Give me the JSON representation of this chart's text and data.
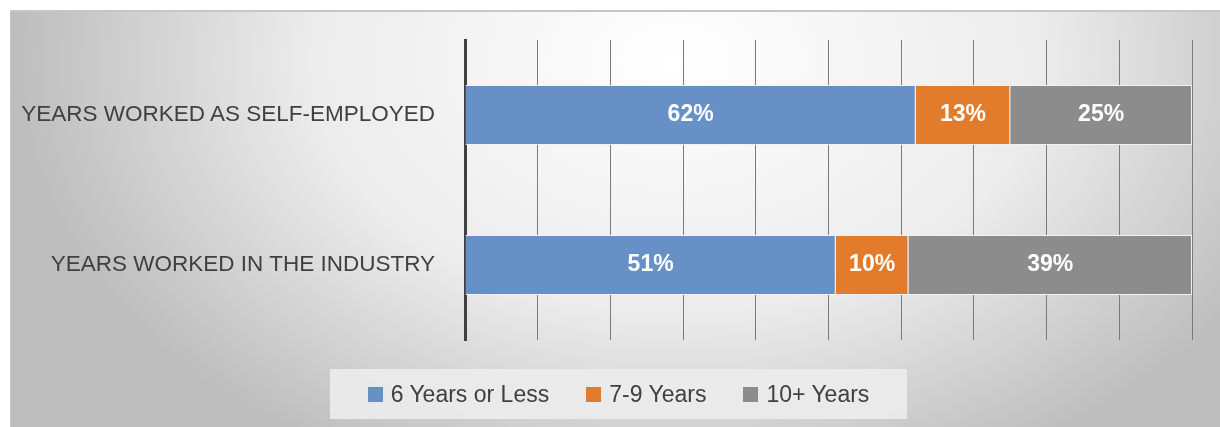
{
  "chart_data": {
    "type": "bar",
    "orientation": "horizontal",
    "stacked": true,
    "categories": [
      "YEARS WORKED AS SELF-EMPLOYED",
      "YEARS WORKED IN THE INDUSTRY"
    ],
    "series": [
      {
        "name": "6 Years or Less",
        "color": "#6791c6",
        "values": [
          62,
          51
        ],
        "value_labels": [
          "62%",
          "51%"
        ]
      },
      {
        "name": "7-9 Years",
        "color": "#e27c2c",
        "values": [
          13,
          10
        ],
        "value_labels": [
          "13%",
          "10%"
        ]
      },
      {
        "name": "10+ Years",
        "color": "#8c8c8c",
        "values": [
          25,
          39
        ],
        "value_labels": [
          "25%",
          "39%"
        ]
      }
    ],
    "xlim": [
      0,
      100
    ],
    "xticks": [
      {
        "value": 0,
        "label": null
      },
      {
        "value": 10,
        "label": null
      },
      {
        "value": 20,
        "label": null
      },
      {
        "value": 30,
        "label": null
      },
      {
        "value": 40,
        "label": null
      },
      {
        "value": 50,
        "label": null
      },
      {
        "value": 60,
        "label": null
      },
      {
        "value": 70,
        "label": null
      },
      {
        "value": 80,
        "label": null
      },
      {
        "value": 90,
        "label": null
      },
      {
        "value": 100,
        "label": null
      }
    ],
    "grid": "x",
    "legend": "bottom",
    "tick_labels": "y"
  }
}
